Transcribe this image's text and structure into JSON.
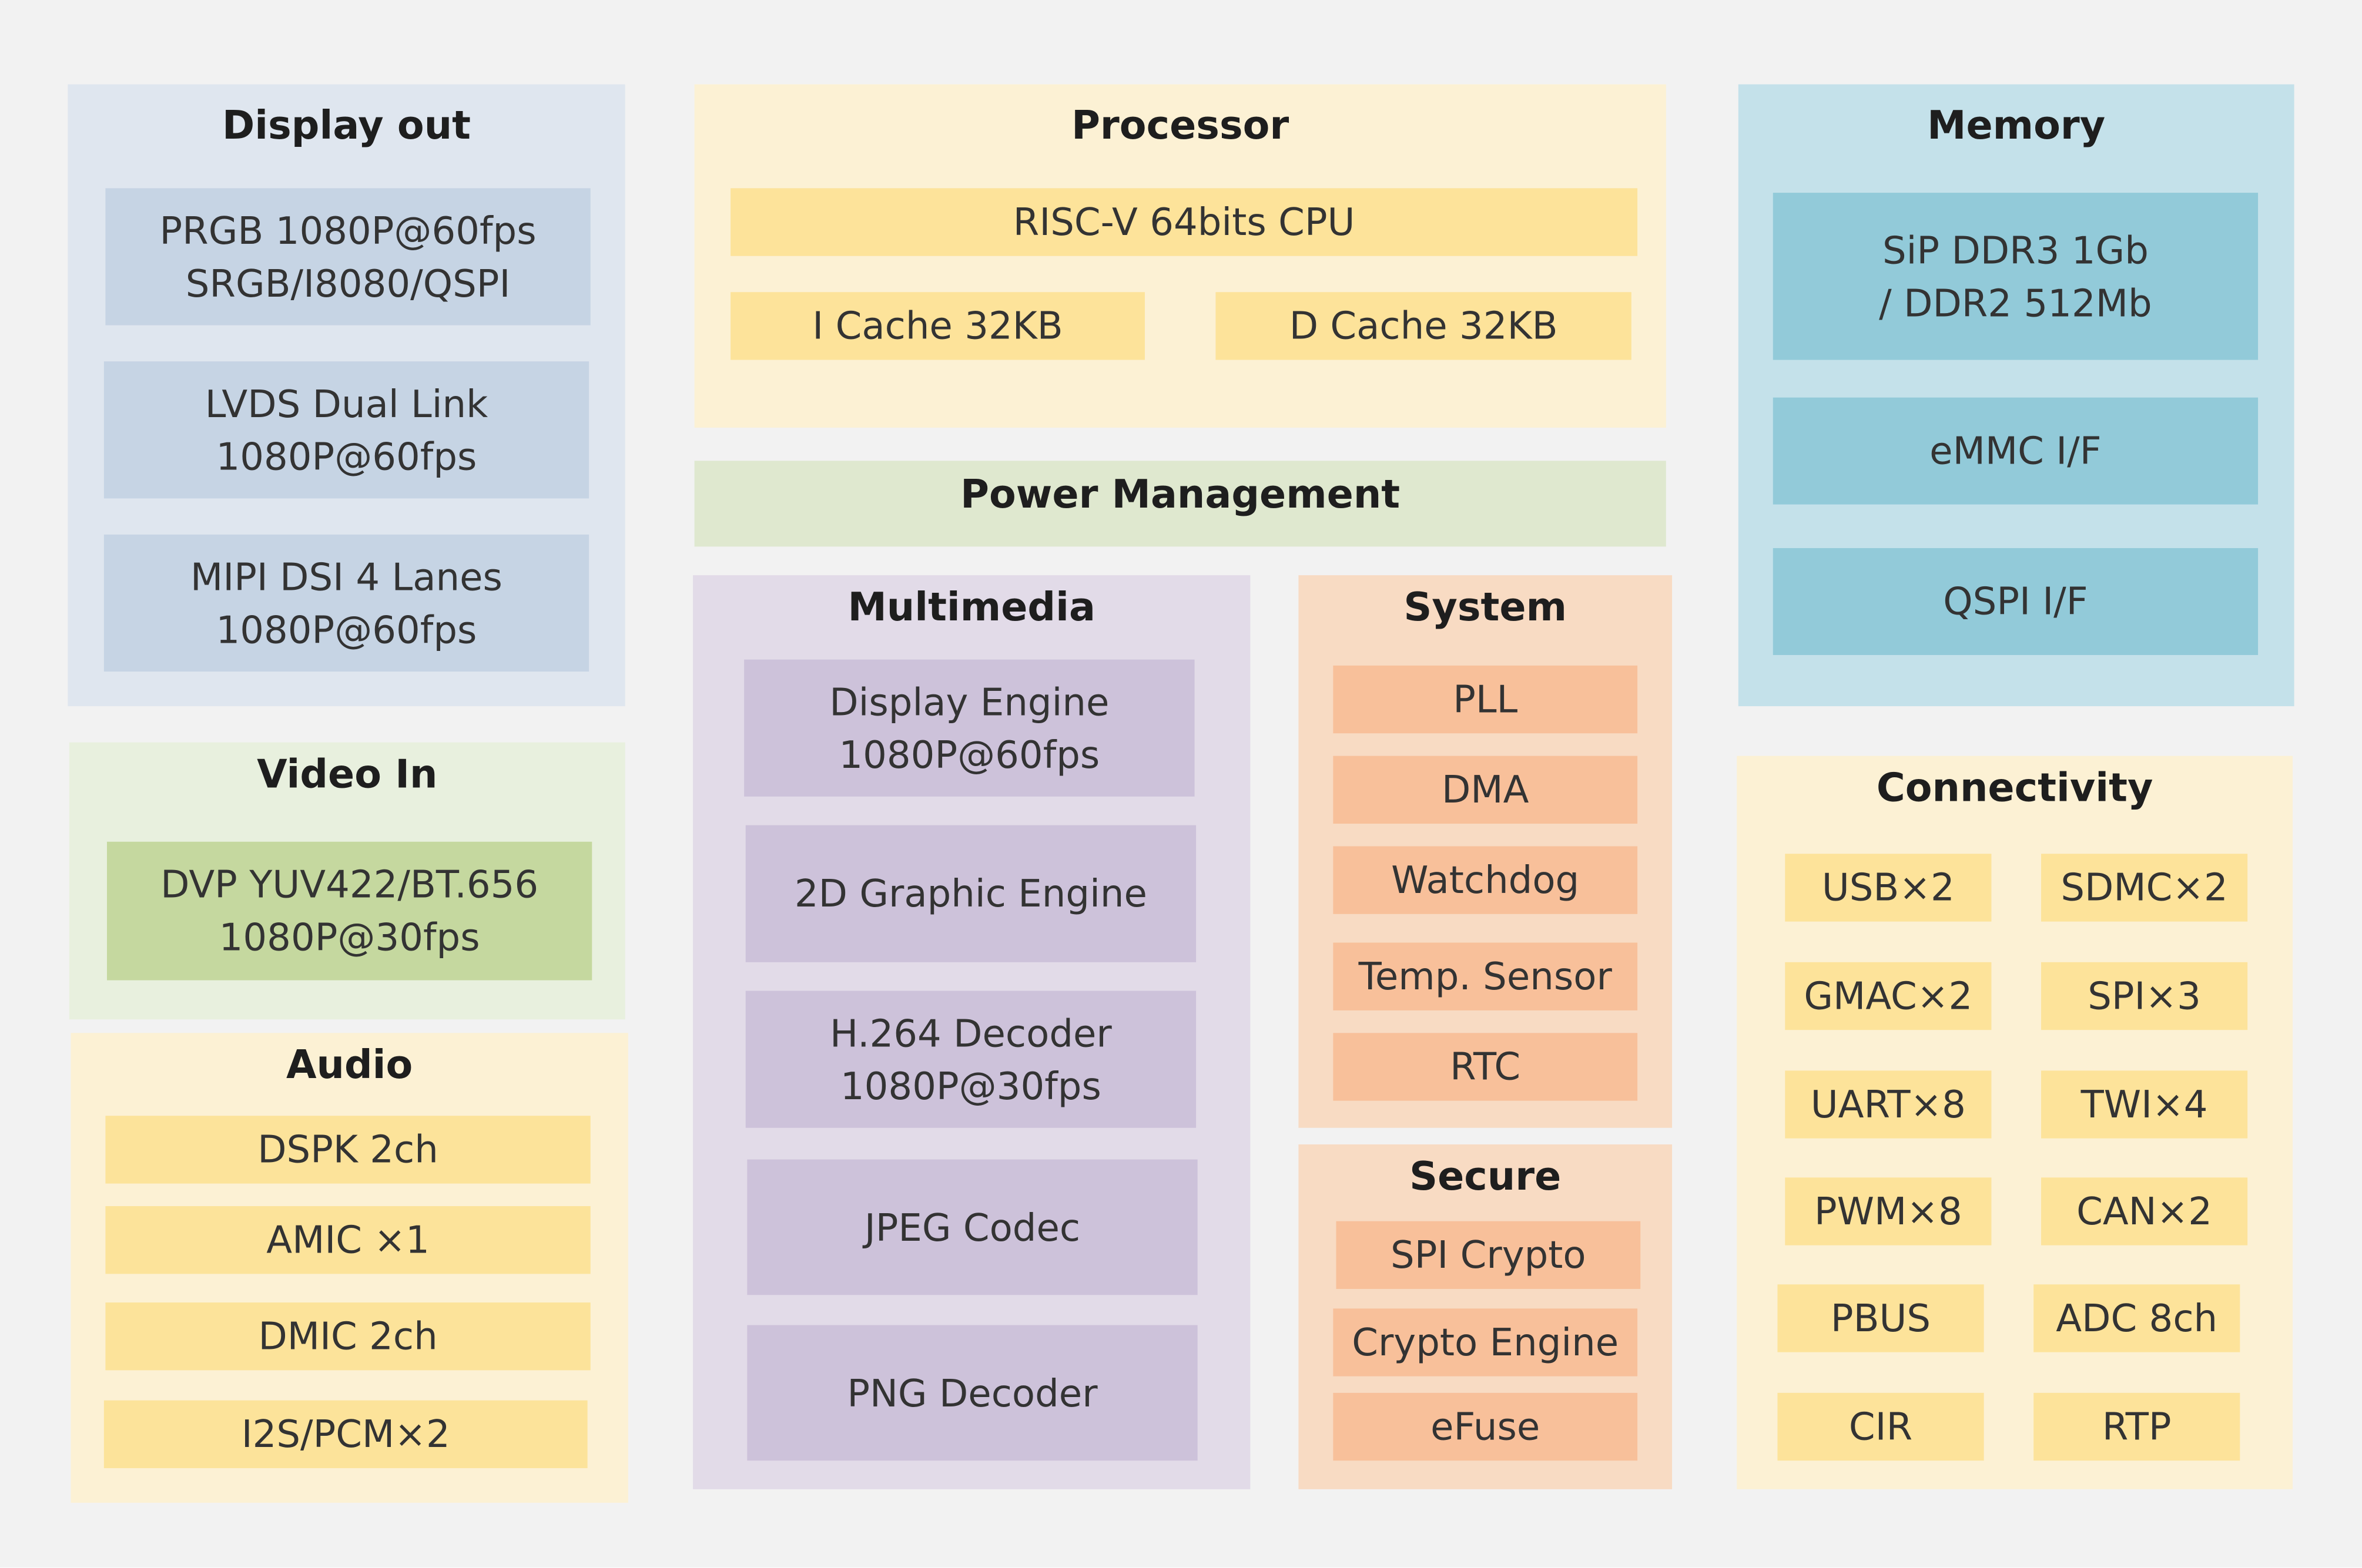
{
  "groups": [
    {
      "title": "Display out",
      "items": [
        "PRGB 1080P@60fps\nSRGB/I8080/QSPI",
        "LVDS Dual Link\n1080P@60fps",
        "MIPI DSI 4 Lanes\n1080P@60fps"
      ]
    },
    {
      "title": "Video In",
      "items": [
        "DVP YUV422/BT.656\n1080P@30fps"
      ]
    },
    {
      "title": "Audio",
      "items": [
        "DSPK 2ch",
        "AMIC ×1",
        "DMIC 2ch",
        "I2S/PCM×2"
      ]
    },
    {
      "title": "Processor",
      "items": [
        "RISC-V 64bits CPU",
        "I Cache 32KB",
        "D Cache 32KB"
      ]
    },
    {
      "title": "Power Management",
      "items": []
    },
    {
      "title": "Multimedia",
      "items": [
        "Display Engine\n1080P@60fps",
        "2D Graphic Engine",
        "H.264 Decoder\n1080P@30fps",
        "JPEG Codec",
        "PNG Decoder"
      ]
    },
    {
      "title": "System",
      "items": [
        "PLL",
        "DMA",
        "Watchdog",
        "Temp. Sensor",
        "RTC"
      ]
    },
    {
      "title": "Secure",
      "items": [
        "SPI Crypto",
        "Crypto Engine",
        "eFuse"
      ]
    },
    {
      "title": "Memory",
      "items": [
        "SiP DDR3 1Gb\n/ DDR2 512Mb",
        "eMMC I/F",
        "QSPI  I/F"
      ]
    },
    {
      "title": "Connectivity",
      "items": [
        "USB×2",
        "SDMC×2",
        "GMAC×2",
        "SPI×3",
        "UART×8",
        "TWI×4",
        "PWM×8",
        "CAN×2",
        "PBUS",
        "ADC 8ch",
        "CIR",
        "RTP"
      ]
    }
  ]
}
